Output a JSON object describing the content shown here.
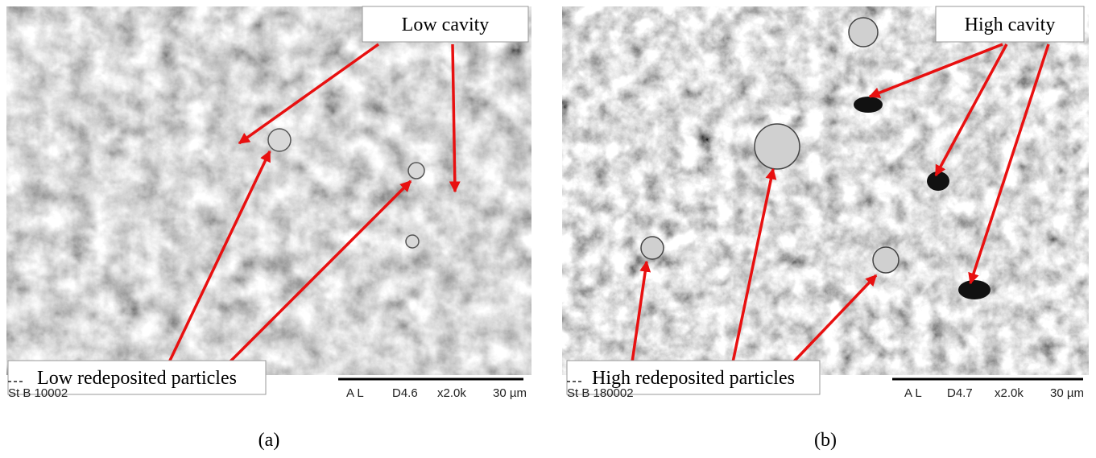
{
  "panels": [
    {
      "cavity_label": "Low cavity",
      "particles_label": "Low redeposited particles",
      "sample": "St B 10002",
      "mode": "A L",
      "distance": "D4.6",
      "magnification": "x2.0k",
      "scale": "30 µm",
      "caption": "(a)"
    },
    {
      "cavity_label": "High cavity",
      "particles_label": "High redeposited particles",
      "sample": "St B 180002",
      "mode": "A L",
      "distance": "D4.7",
      "magnification": "x2.0k",
      "scale": "30 µm",
      "caption": "(b)"
    }
  ]
}
